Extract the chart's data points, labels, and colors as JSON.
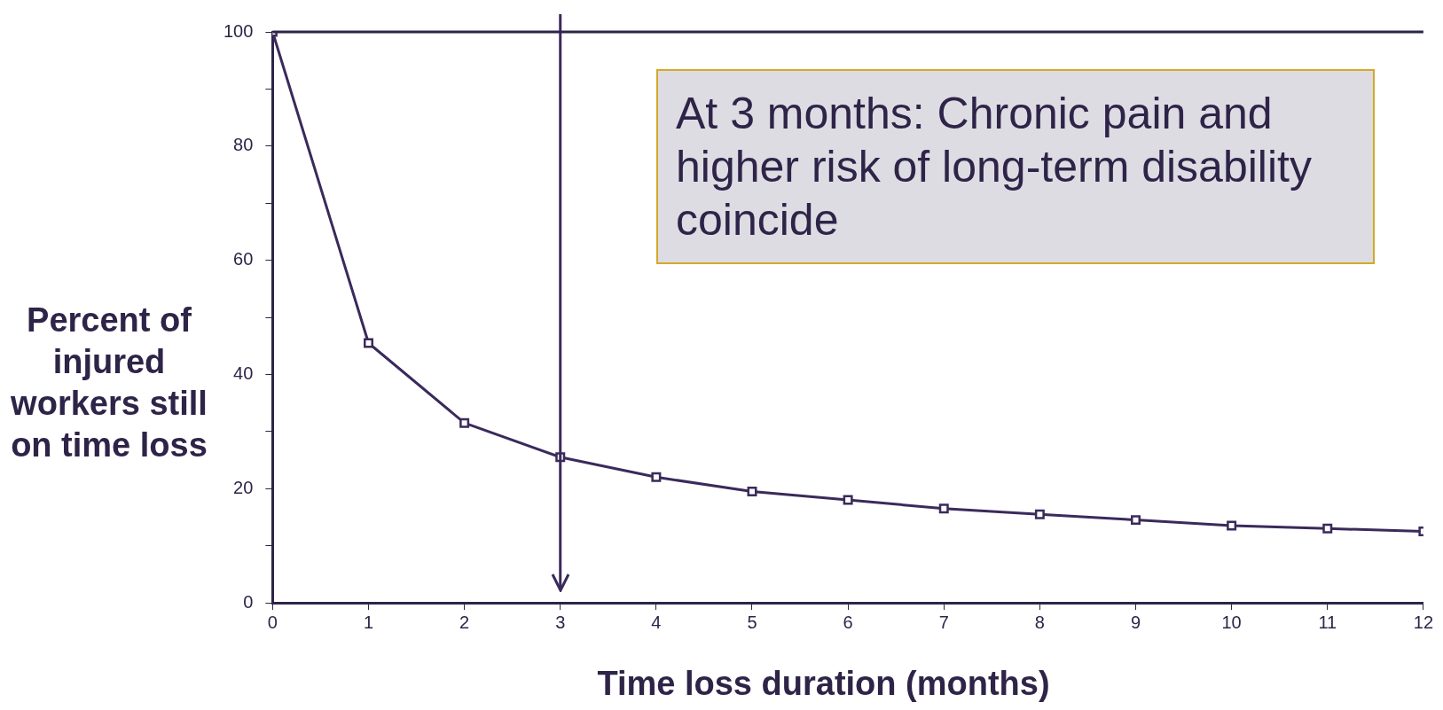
{
  "chart_data": {
    "type": "line",
    "xlabel": "Time loss duration (months)",
    "ylabel": "Percent of injured workers still on time loss",
    "x": [
      0,
      1,
      2,
      3,
      4,
      5,
      6,
      7,
      8,
      9,
      10,
      11,
      12
    ],
    "series": [
      {
        "color": "#3b2a5c",
        "values": [
          100,
          45.5,
          31.5,
          25.5,
          22,
          19.5,
          18,
          16.5,
          15.5,
          14.5,
          13.5,
          13,
          12.5
        ]
      }
    ],
    "xlim": [
      0,
      12
    ],
    "xticks": [
      0,
      1,
      2,
      3,
      4,
      5,
      6,
      7,
      8,
      9,
      10,
      11,
      12
    ],
    "ylim": [
      0,
      100
    ],
    "yticks": [
      0,
      {
        "value": 10,
        "label": null
      },
      20,
      {
        "value": 30,
        "label": null
      },
      40,
      {
        "value": 50,
        "label": null
      },
      60,
      {
        "value": 70,
        "label": null
      },
      80,
      {
        "value": 90,
        "label": null
      },
      100
    ],
    "ref_lines": [
      {
        "axis": "x",
        "value": 3,
        "color": "#3b2a5c"
      }
    ],
    "annotations": [
      "At 3 months:  Chronic pain and higher risk of long-term disability coincide"
    ],
    "marker": "square",
    "grid": false,
    "legend": false
  }
}
